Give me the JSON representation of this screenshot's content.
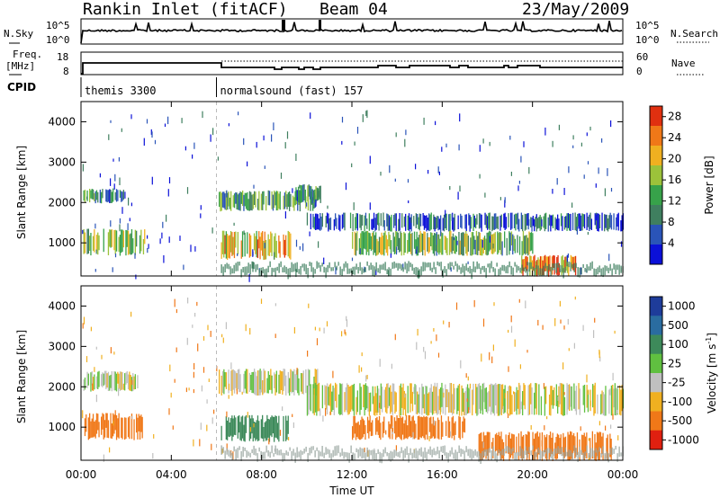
{
  "header": {
    "title": "Rankin Inlet (fitACF)",
    "beam": "Beam 04",
    "date": "23/May/2009"
  },
  "labels": {
    "nsky": "N.Sky",
    "nsearch": "N.Search",
    "freq": "Freq.",
    "freq_unit": "[MHz]",
    "nave": "Nave",
    "cpid": "CPID",
    "nsky_ticks": [
      "10^5",
      "10^0"
    ],
    "nsearch_ticks": [
      "10^5",
      "10^0"
    ],
    "freq_ticks": [
      "18",
      "8"
    ],
    "nave_ticks": [
      "60",
      "0"
    ]
  },
  "cpid_segments": [
    {
      "start": 0,
      "end": 6,
      "label": "themis 3300"
    },
    {
      "start": 6,
      "end": 24,
      "label": "normalsound (fast) 157"
    }
  ],
  "chart_data": [
    {
      "type": "heatmap",
      "title": "Power",
      "xlabel": "Time UT",
      "ylabel": "Slant Range [km]",
      "xlim": [
        0,
        24
      ],
      "ylim": [
        180,
        4500
      ],
      "xticks": [
        0,
        4,
        8,
        12,
        16,
        20,
        24
      ],
      "xtick_labels": [
        "00:00",
        "04:00",
        "08:00",
        "12:00",
        "16:00",
        "20:00",
        "00:00"
      ],
      "yticks": [
        1000,
        2000,
        3000,
        4000
      ],
      "colorbar": {
        "label": "Power [dB]",
        "ticks": [
          4,
          8,
          12,
          16,
          20,
          24,
          28
        ],
        "range": [
          0,
          30
        ],
        "colors": [
          "#0b10d8",
          "#2a54b8",
          "#3f7f5f",
          "#37a24a",
          "#9cc23a",
          "#f0b020",
          "#f07818",
          "#e03010"
        ]
      },
      "echo_regions": [
        {
          "t0": 0.1,
          "t1": 1.9,
          "r0": 2000,
          "r1": 2350,
          "value": 10
        },
        {
          "t0": 0.1,
          "t1": 2.8,
          "r0": 700,
          "r1": 1350,
          "value": 16
        },
        {
          "t0": 6.1,
          "t1": 10.4,
          "r0": 1800,
          "r1": 2300,
          "value": 12
        },
        {
          "t0": 6.2,
          "t1": 9.3,
          "r0": 600,
          "r1": 1300,
          "value": 20
        },
        {
          "t0": 9.5,
          "t1": 10.6,
          "r0": 2000,
          "r1": 2450,
          "value": 10
        },
        {
          "t0": 10.0,
          "t1": 24.0,
          "r0": 1300,
          "r1": 1750,
          "value": 6
        },
        {
          "t0": 12.0,
          "t1": 20.0,
          "r0": 700,
          "r1": 1300,
          "value": 14
        },
        {
          "t0": 19.5,
          "t1": 22.0,
          "r0": 180,
          "r1": 700,
          "value": 24
        }
      ]
    },
    {
      "type": "heatmap",
      "title": "Velocity",
      "xlabel": "Time UT",
      "ylabel": "Slant Range [km]",
      "xlim": [
        0,
        24
      ],
      "ylim": [
        180,
        4500
      ],
      "xticks": [
        0,
        4,
        8,
        12,
        16,
        20,
        24
      ],
      "xtick_labels": [
        "00:00",
        "04:00",
        "08:00",
        "12:00",
        "16:00",
        "20:00",
        "00:00"
      ],
      "yticks": [
        1000,
        2000,
        3000,
        4000
      ],
      "colorbar": {
        "label": "Velocity [m s^-1]",
        "ticks": [
          "1000",
          "500",
          "100",
          "25",
          "-25",
          "-100",
          "-500",
          "-1000"
        ],
        "colors": [
          "#1e3c9a",
          "#2a6ca0",
          "#3d8a5a",
          "#60c040",
          "#c0c0c0",
          "#f0b020",
          "#f07818",
          "#e02010"
        ]
      },
      "echo_regions": [
        {
          "t0": 0.1,
          "t1": 2.5,
          "r0": 1900,
          "r1": 2400,
          "value": 0
        },
        {
          "t0": 0.1,
          "t1": 2.7,
          "r0": 700,
          "r1": 1350,
          "value": -300
        },
        {
          "t0": 6.1,
          "t1": 10.5,
          "r0": 1800,
          "r1": 2450,
          "value": 0
        },
        {
          "t0": 6.2,
          "t1": 9.2,
          "r0": 650,
          "r1": 1300,
          "value": 300
        },
        {
          "t0": 10.0,
          "t1": 24.0,
          "r0": 1300,
          "r1": 2100,
          "value": 0
        },
        {
          "t0": 12.0,
          "t1": 17.0,
          "r0": 700,
          "r1": 1300,
          "value": -300
        },
        {
          "t0": 17.5,
          "t1": 23.5,
          "r0": 180,
          "r1": 900,
          "value": -300
        }
      ]
    }
  ]
}
